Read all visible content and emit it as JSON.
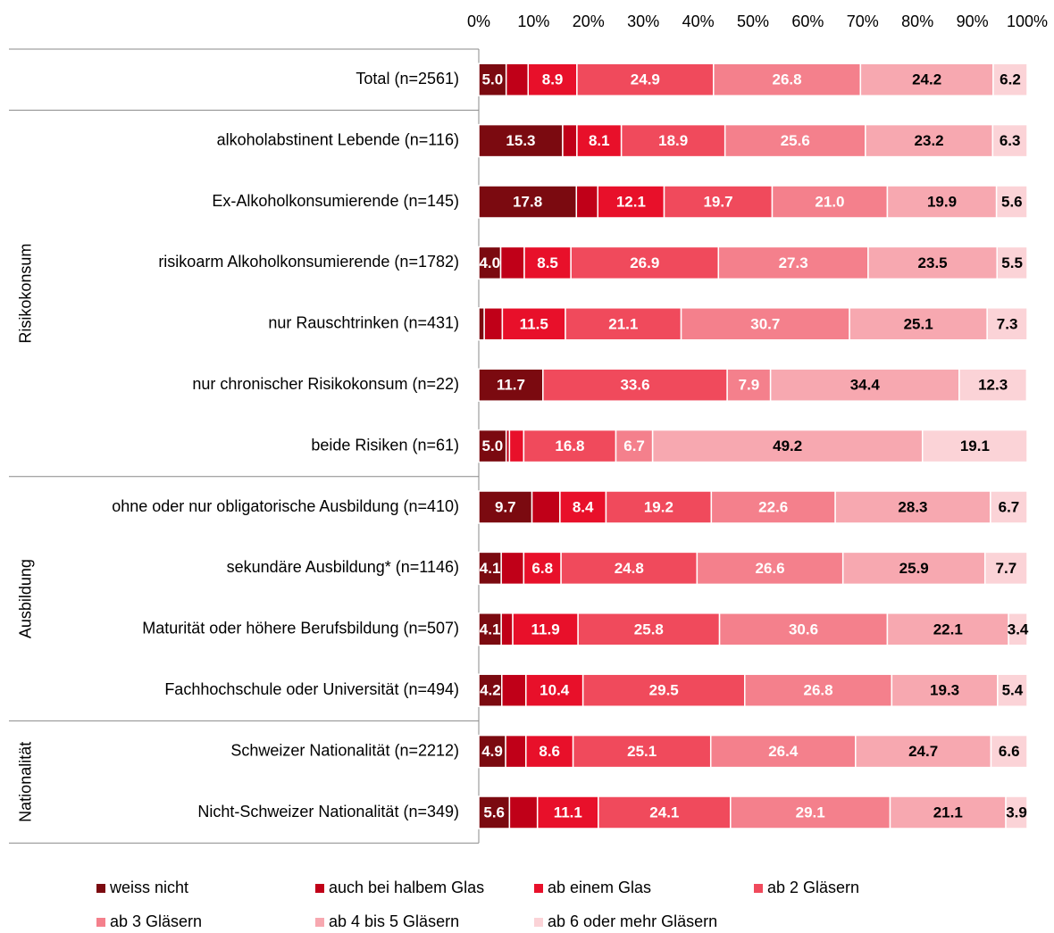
{
  "chart_data": {
    "type": "stacked_barh",
    "xlim": [
      0,
      100
    ],
    "xticks": [
      {
        "value": 0,
        "label": "0%"
      },
      {
        "value": 10,
        "label": "10%"
      },
      {
        "value": 20,
        "label": "20%"
      },
      {
        "value": 30,
        "label": "30%"
      },
      {
        "value": 40,
        "label": "40%"
      },
      {
        "value": 50,
        "label": "50%"
      },
      {
        "value": 60,
        "label": "60%"
      },
      {
        "value": 70,
        "label": "70%"
      },
      {
        "value": 80,
        "label": "80%"
      },
      {
        "value": 90,
        "label": "90%"
      },
      {
        "value": 100,
        "label": "100%"
      }
    ],
    "groups": [
      {
        "label": null,
        "categories": [
          "Total (n=2561)"
        ]
      },
      {
        "label": "Risikokonsum",
        "categories": [
          "alkoholabstinent Lebende (n=116)",
          "Ex-Alkoholkonsumierende (n=145)",
          "risikoarm Alkoholkonsumierende (n=1782)",
          "nur Rauschtrinken (n=431)",
          "nur chronischer Risikokonsum (n=22)",
          "beide Risiken (n=61)"
        ]
      },
      {
        "label": "Ausbildung",
        "categories": [
          "ohne oder nur obligatorische Ausbildung (n=410)",
          "sekundäre Ausbildung* (n=1146)",
          "Maturität oder höhere Berufsbildung (n=507)",
          "Fachhochschule oder Universität (n=494)"
        ]
      },
      {
        "label": "Nationalität",
        "categories": [
          "Schweizer Nationalität (n=2212)",
          "Nicht-Schweizer Nationalität (n=349)"
        ]
      }
    ],
    "series": [
      {
        "name": "weiss nicht",
        "color": "#7b0a10",
        "label_color": "#ffffff",
        "values": [
          5.0,
          15.3,
          17.8,
          4.0,
          1.0,
          11.7,
          5.0,
          9.7,
          4.1,
          4.1,
          4.2,
          4.9,
          5.6
        ],
        "value_labels": [
          "5.0",
          "15.3",
          "17.8",
          "4.0",
          null,
          "11.7",
          "5.0",
          "9.7",
          "4.1",
          "4.1",
          "4.2",
          "4.9",
          "5.6"
        ]
      },
      {
        "name": "auch bei halbem Glas",
        "color": "#c00018",
        "label_color": "#ffffff",
        "values": [
          4.0,
          2.6,
          3.9,
          4.3,
          3.3,
          0,
          0.6,
          5.1,
          4.1,
          2.1,
          4.4,
          3.7,
          5.1
        ],
        "value_labels": [
          null,
          null,
          null,
          null,
          null,
          null,
          null,
          null,
          null,
          null,
          null,
          null,
          null
        ]
      },
      {
        "name": "ab einem Glas",
        "color": "#e8102a",
        "label_color": "#ffffff",
        "values": [
          8.9,
          8.1,
          12.1,
          8.5,
          11.5,
          0,
          2.6,
          8.4,
          6.8,
          11.9,
          10.4,
          8.6,
          11.1
        ],
        "value_labels": [
          "8.9",
          "8.1",
          "12.1",
          "8.5",
          "11.5",
          null,
          null,
          "8.4",
          "6.8",
          "11.9",
          "10.4",
          "8.6",
          "11.1"
        ]
      },
      {
        "name": "ab 2 Gläsern",
        "color": "#f04a5c",
        "label_color": "#ffffff",
        "values": [
          24.9,
          18.9,
          19.7,
          26.9,
          21.1,
          33.6,
          16.8,
          19.2,
          24.8,
          25.8,
          29.5,
          25.1,
          24.1
        ],
        "value_labels": [
          "24.9",
          "18.9",
          "19.7",
          "26.9",
          "21.1",
          "33.6",
          "16.8",
          "19.2",
          "24.8",
          "25.8",
          "29.5",
          "25.1",
          "24.1"
        ]
      },
      {
        "name": "ab 3 Gläsern",
        "color": "#f4808c",
        "label_color": "#ffffff",
        "values": [
          26.8,
          25.6,
          21.0,
          27.3,
          30.7,
          7.9,
          6.7,
          22.6,
          26.6,
          30.6,
          26.8,
          26.4,
          29.1
        ],
        "value_labels": [
          "26.8",
          "25.6",
          "21.0",
          "27.3",
          "30.7",
          "7.9",
          "6.7",
          "22.6",
          "26.6",
          "30.6",
          "26.8",
          "26.4",
          "29.1"
        ]
      },
      {
        "name": "ab 4 bis 5 Gläsern",
        "color": "#f7a8b0",
        "label_color": "#000000",
        "values": [
          24.2,
          23.2,
          19.9,
          23.5,
          25.1,
          34.4,
          49.2,
          28.3,
          25.9,
          22.1,
          19.3,
          24.7,
          21.1
        ],
        "value_labels": [
          "24.2",
          "23.2",
          "19.9",
          "23.5",
          "25.1",
          "34.4",
          "49.2",
          "28.3",
          "25.9",
          "22.1",
          "19.3",
          "24.7",
          "21.1"
        ]
      },
      {
        "name": "ab 6 oder mehr Gläsern",
        "color": "#fbd3d7",
        "label_color": "#000000",
        "values": [
          6.2,
          6.3,
          5.6,
          5.5,
          7.3,
          12.3,
          19.1,
          6.7,
          7.7,
          3.4,
          5.4,
          6.6,
          3.9
        ],
        "value_labels": [
          "6.2",
          "6.3",
          "5.6",
          "5.5",
          "7.3",
          "12.3",
          "19.1",
          "6.7",
          "7.7",
          "3.4",
          "5.4",
          "6.6",
          "3.9"
        ]
      }
    ]
  }
}
